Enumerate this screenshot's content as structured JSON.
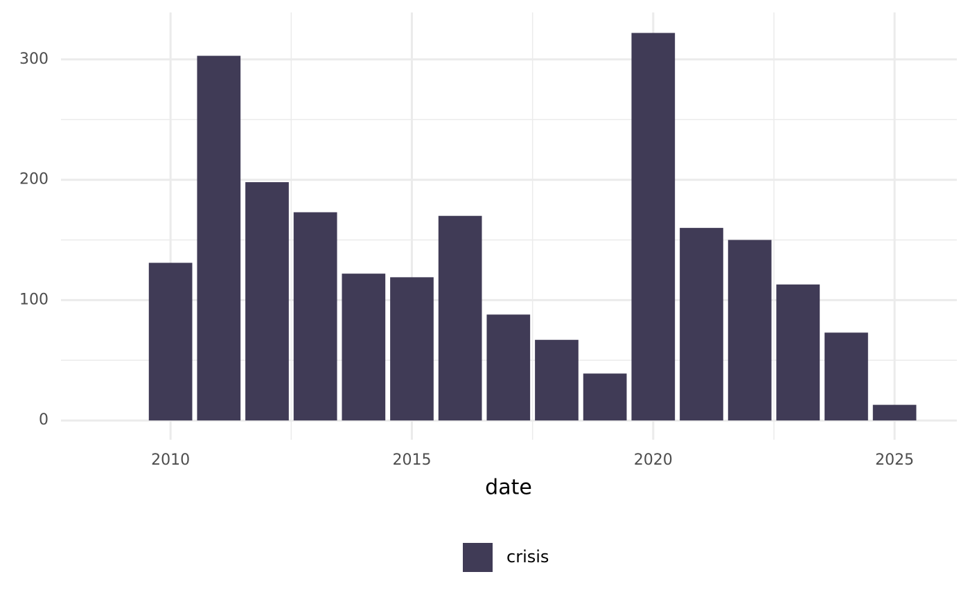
{
  "chart_data": {
    "type": "bar",
    "x_label": "date",
    "x": [
      2010,
      2011,
      2012,
      2013,
      2014,
      2015,
      2016,
      2017,
      2018,
      2019,
      2020,
      2021,
      2022,
      2023,
      2024,
      2025
    ],
    "series": [
      {
        "name": "crisis",
        "color": "#403b56",
        "values": [
          131,
          303,
          198,
          173,
          122,
          119,
          170,
          88,
          67,
          39,
          322,
          160,
          150,
          113,
          73,
          13
        ]
      }
    ],
    "xlim": [
      2007.73,
      2026.29
    ],
    "xticks": [
      2010,
      2015,
      2020,
      2025
    ],
    "ylim": [
      -16,
      339
    ],
    "yticks": [
      0,
      100,
      200,
      300
    ],
    "grid": true,
    "legend": "bottom"
  }
}
